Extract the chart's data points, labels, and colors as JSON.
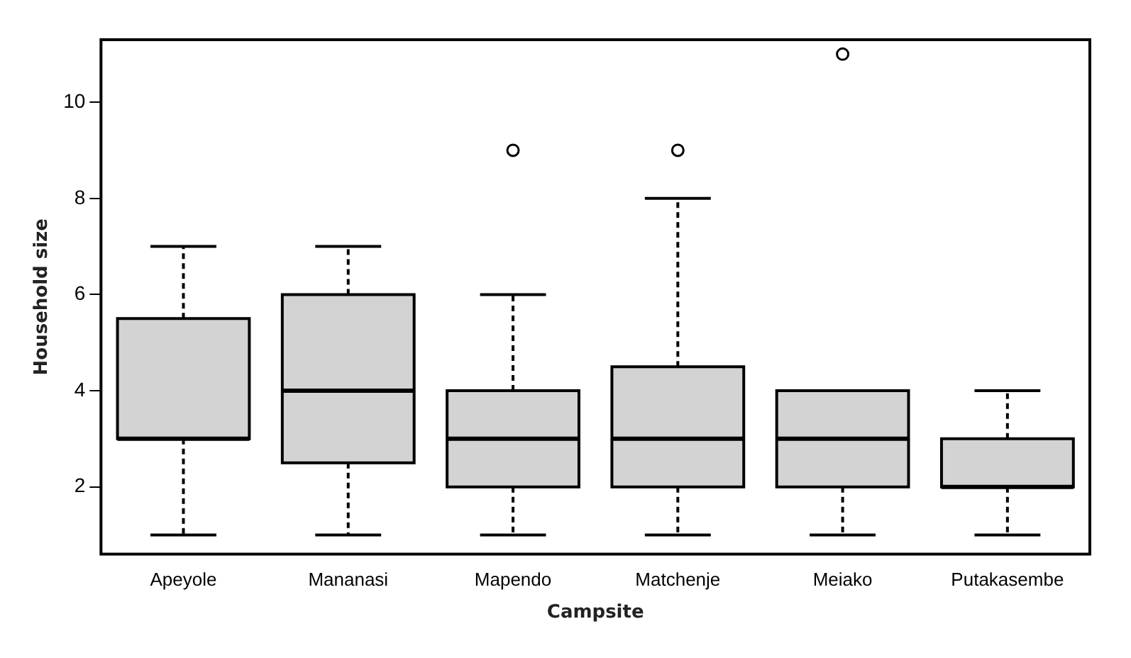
{
  "chart_data": {
    "type": "box",
    "xlabel": "Campsite",
    "ylabel": "Household size",
    "categories": [
      "Apeyole",
      "Mananasi",
      "Mapendo",
      "Matchenje",
      "Meiako",
      "Putakasembe"
    ],
    "boxes": [
      {
        "low": 1,
        "q1": 3,
        "median": 3,
        "q3": 5.5,
        "high": 7
      },
      {
        "low": 1,
        "q1": 2.5,
        "median": 4,
        "q3": 6,
        "high": 7
      },
      {
        "low": 1,
        "q1": 2,
        "median": 3,
        "q3": 4,
        "high": 6,
        "outliers": [
          9
        ]
      },
      {
        "low": 1,
        "q1": 2,
        "median": 3,
        "q3": 4.5,
        "high": 8,
        "outliers": [
          9
        ]
      },
      {
        "low": 1,
        "q1": 2,
        "median": 3,
        "q3": 4,
        "high": 4,
        "outliers": [
          11
        ]
      },
      {
        "low": 1,
        "q1": 2,
        "median": 2,
        "q3": 3,
        "high": 4
      }
    ],
    "color": "#d3d3d3",
    "ylim": [
      0.6,
      11.3
    ],
    "yticks": [
      2,
      4,
      6,
      8,
      10
    ],
    "grid": false,
    "legend": false
  }
}
